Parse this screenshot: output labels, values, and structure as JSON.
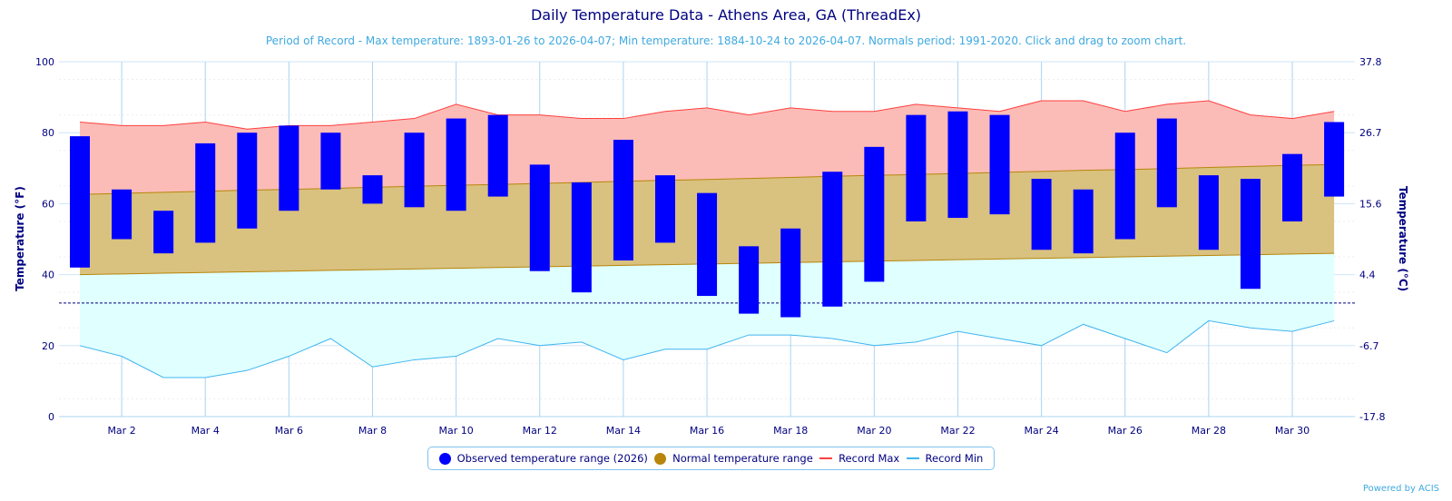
{
  "title": "Daily Temperature Data - Athens Area, GA (ThreadEx)",
  "subtitle": "Period of Record - Max temperature: 1893-01-26 to 2026-04-07; Min temperature: 1884-10-24 to 2026-04-07. Normals period: 1991-2020. Click and drag to zoom chart.",
  "credit": "Powered by ACIS",
  "colors": {
    "observed": "#0000ff",
    "normal": "#b8860b",
    "normal_fill": "#d9c17f",
    "record_max": "#ff4040",
    "record_max_fill": "#fbbcb7",
    "record_min": "#40b4f0",
    "record_min_fill": "#e0ffff",
    "axis_text": "#000080"
  },
  "legend": {
    "observed": "Observed temperature range (2026)",
    "normal": "Normal temperature range",
    "record_max": "Record Max",
    "record_min": "Record Min"
  },
  "chart_data": {
    "type": "bar",
    "title": "Daily Temperature Data - Athens Area, GA (ThreadEx)",
    "xlabel": "",
    "ylabel": "Temperature (°F)",
    "ylabel_right": "Temperature (°C)",
    "ylim": [
      0,
      100
    ],
    "yticks": [
      "0",
      "20",
      "40",
      "60",
      "80",
      "100"
    ],
    "yticks_right": [
      "-17.8",
      "-6.7",
      "4.4",
      "15.6",
      "26.7",
      "37.8"
    ],
    "freezing_line": 32,
    "days": [
      1,
      2,
      3,
      4,
      5,
      6,
      7,
      8,
      9,
      10,
      11,
      12,
      13,
      14,
      15,
      16,
      17,
      18,
      19,
      20,
      21,
      22,
      23,
      24,
      25,
      26,
      27,
      28,
      29,
      30,
      31
    ],
    "xtick_labels": [
      "Mar 2",
      "Mar 4",
      "Mar 6",
      "Mar 8",
      "Mar 10",
      "Mar 12",
      "Mar 14",
      "Mar 16",
      "Mar 18",
      "Mar 20",
      "Mar 22",
      "Mar 24",
      "Mar 26",
      "Mar 28",
      "Mar 30"
    ],
    "observed_high": [
      79,
      64,
      58,
      77,
      80,
      82,
      80,
      68,
      80,
      84,
      85,
      71,
      66,
      78,
      68,
      63,
      48,
      53,
      69,
      76,
      85,
      86,
      85,
      67,
      64,
      80,
      84,
      68,
      67,
      74,
      83
    ],
    "observed_low": [
      42,
      50,
      46,
      49,
      53,
      58,
      64,
      60,
      59,
      58,
      62,
      41,
      35,
      44,
      49,
      34,
      29,
      28,
      31,
      38,
      55,
      56,
      57,
      47,
      46,
      50,
      59,
      47,
      36,
      55,
      62
    ],
    "normal_high": [
      62.6,
      62.9,
      63.2,
      63.5,
      63.8,
      64.0,
      64.3,
      64.6,
      64.9,
      65.2,
      65.4,
      65.7,
      66.0,
      66.3,
      66.6,
      66.8,
      67.1,
      67.4,
      67.7,
      68.0,
      68.2,
      68.5,
      68.8,
      69.1,
      69.4,
      69.6,
      69.9,
      70.2,
      70.5,
      70.8,
      71.0
    ],
    "normal_low": [
      40.0,
      40.2,
      40.4,
      40.6,
      40.8,
      41.0,
      41.2,
      41.4,
      41.6,
      41.8,
      42.0,
      42.2,
      42.4,
      42.6,
      42.8,
      43.0,
      43.2,
      43.4,
      43.6,
      43.8,
      44.0,
      44.2,
      44.4,
      44.6,
      44.8,
      45.0,
      45.2,
      45.4,
      45.6,
      45.8,
      46.0
    ],
    "record_max": [
      83,
      82,
      82,
      83,
      81,
      82,
      82,
      83,
      84,
      88,
      85,
      85,
      84,
      84,
      86,
      87,
      85,
      87,
      86,
      86,
      88,
      87,
      86,
      89,
      89,
      86,
      88,
      89,
      85,
      84,
      86
    ],
    "record_min": [
      20,
      17,
      11,
      11,
      13,
      17,
      22,
      14,
      16,
      17,
      22,
      20,
      21,
      16,
      19,
      19,
      23,
      23,
      22,
      20,
      21,
      24,
      22,
      20,
      26,
      22,
      18,
      27,
      25,
      24,
      27
    ]
  }
}
